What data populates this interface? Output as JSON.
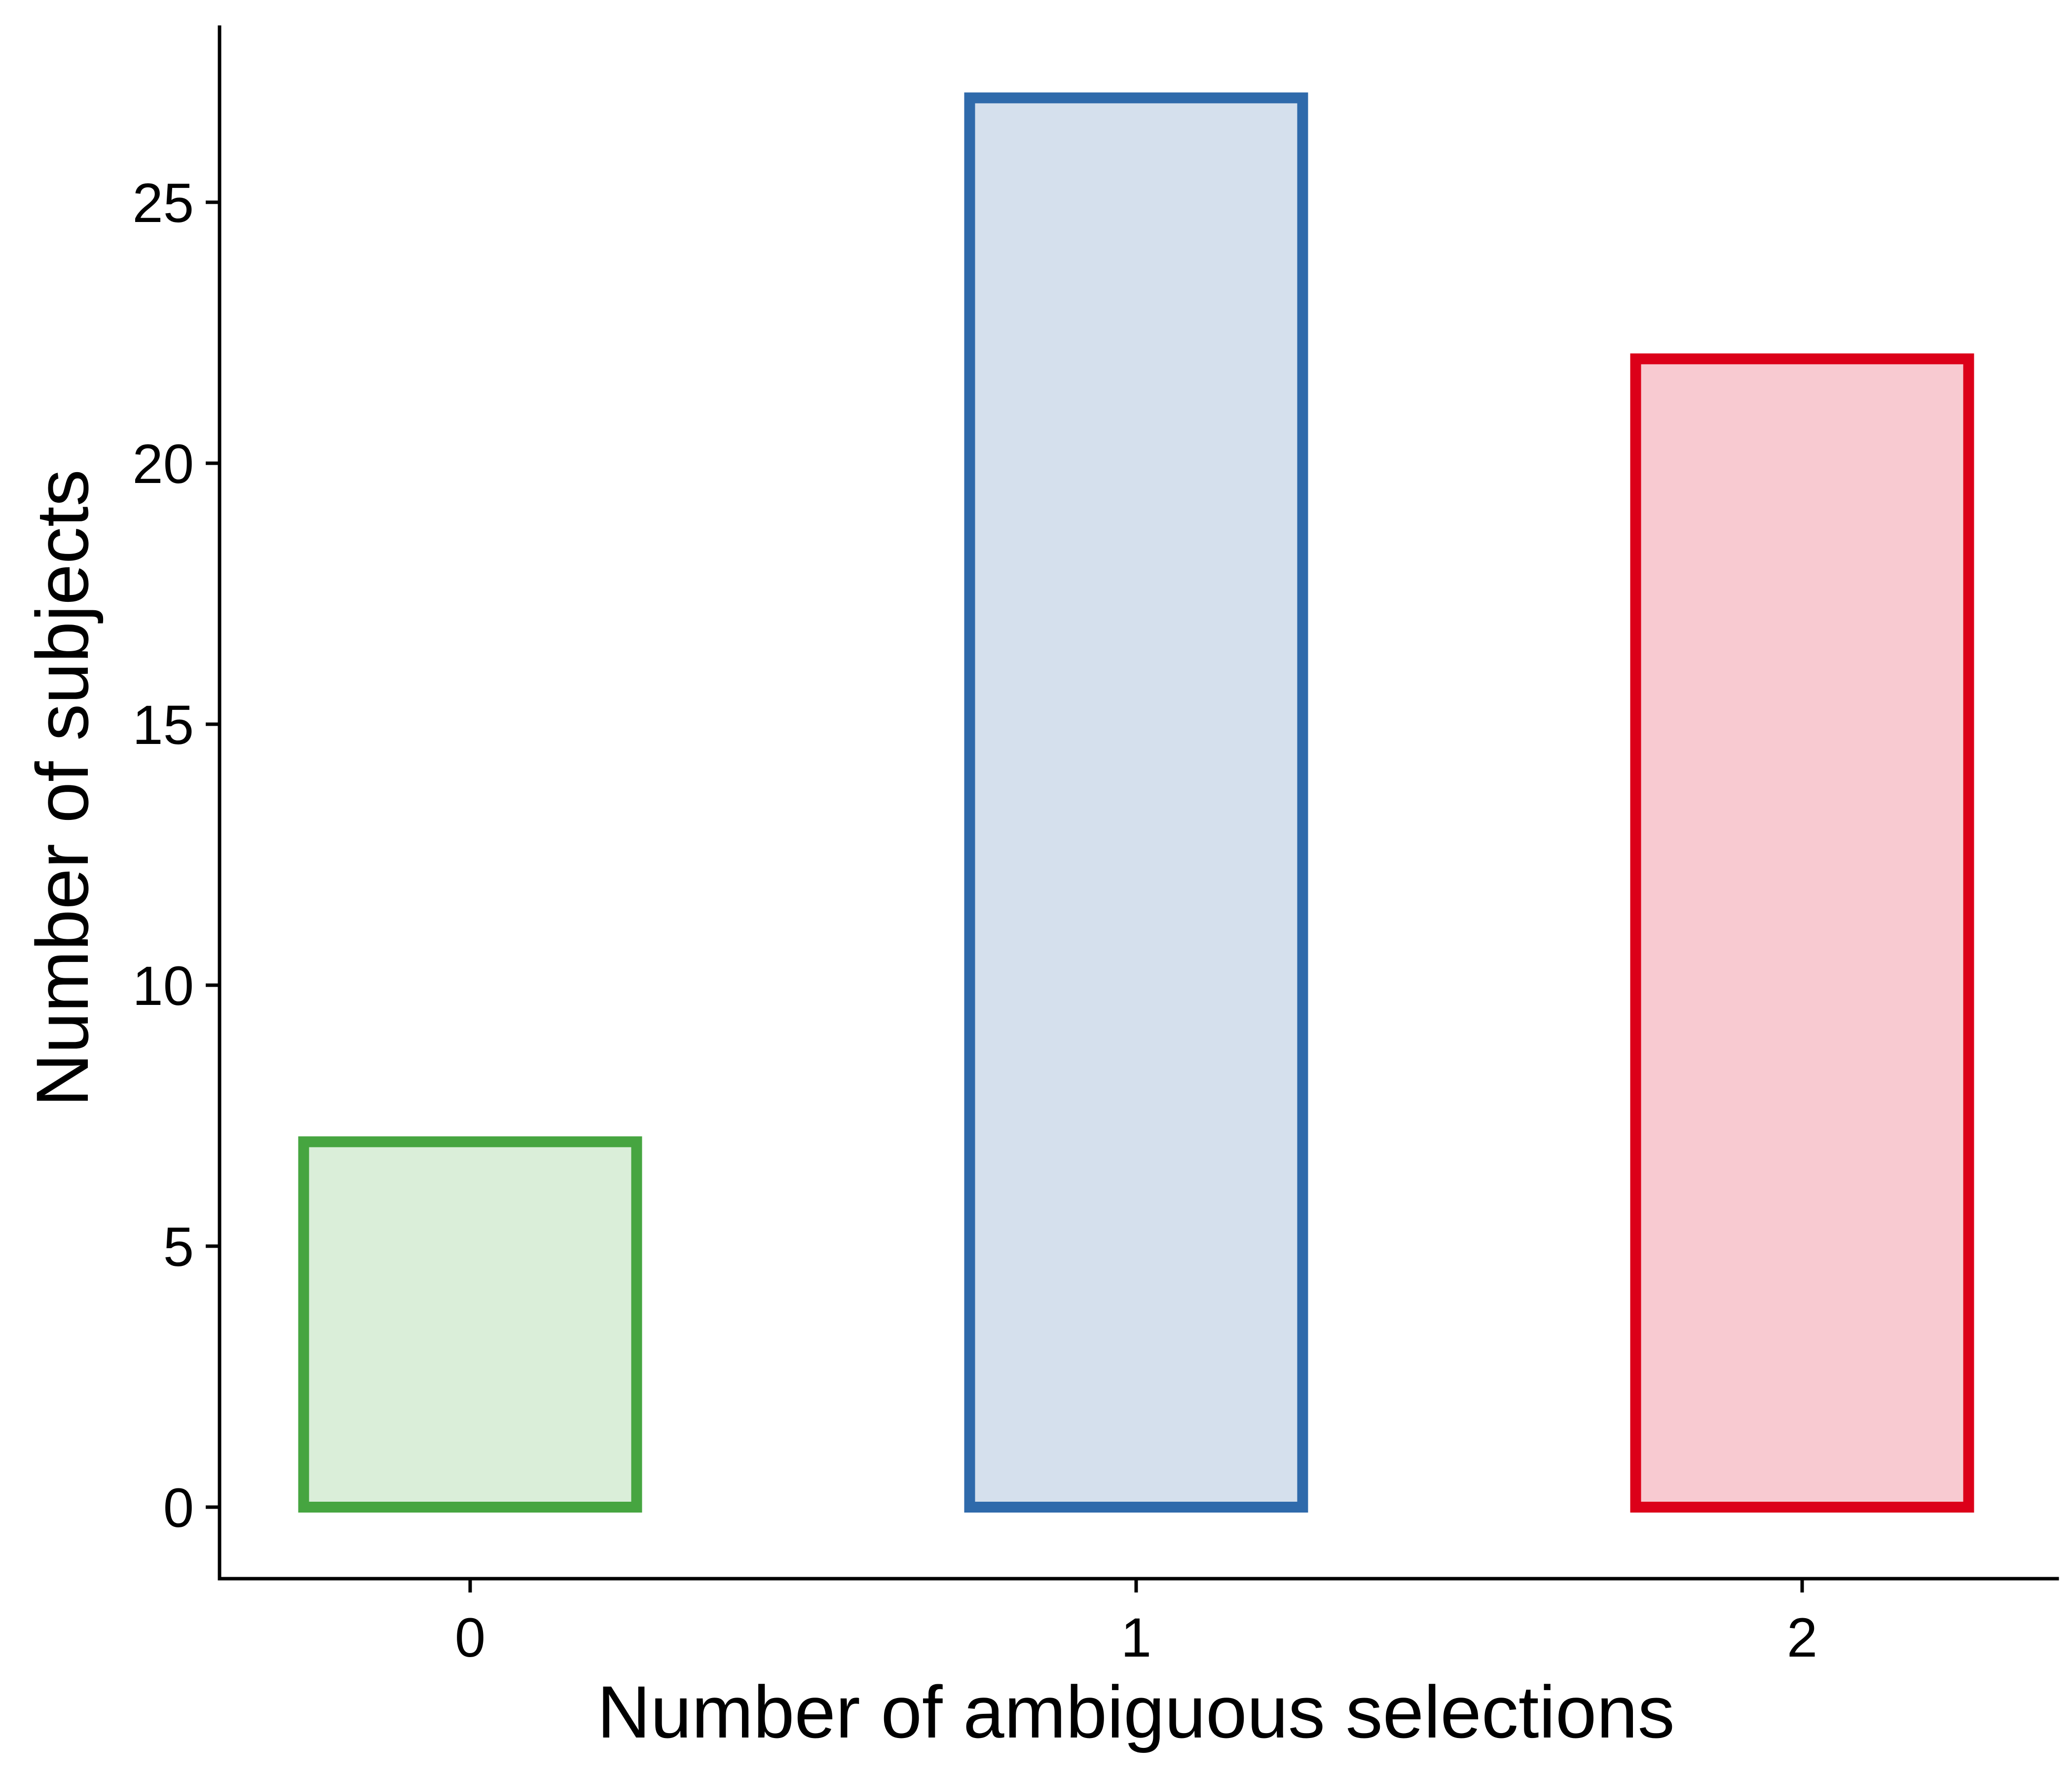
{
  "chart_data": {
    "type": "bar",
    "title": "",
    "xlabel": "Number of ambiguous selections",
    "ylabel": "Number of subjects",
    "categories": [
      "0",
      "1",
      "2"
    ],
    "values": [
      7,
      27,
      22
    ],
    "ylim": [
      -1.35,
      28.4
    ],
    "yticks": [
      0,
      5,
      10,
      15,
      20,
      25
    ],
    "ytick_labels": [
      "0",
      "5",
      "10",
      "15",
      "20",
      "25"
    ],
    "grid": false,
    "legend": "none",
    "bar_colors": [
      {
        "stroke": "#46a540",
        "fill": "#daeed9"
      },
      {
        "stroke": "#2f6aab",
        "fill": "#d5e0ed"
      },
      {
        "stroke": "#dc0019",
        "fill": "#f8cad1"
      }
    ]
  }
}
